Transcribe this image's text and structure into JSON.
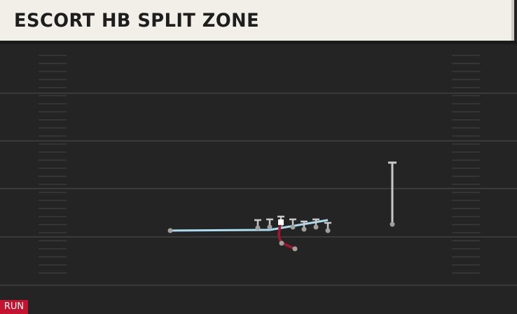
{
  "header": {
    "title": "ESCORT HB SPLIT ZONE"
  },
  "badge": {
    "label": "RUN"
  }
}
